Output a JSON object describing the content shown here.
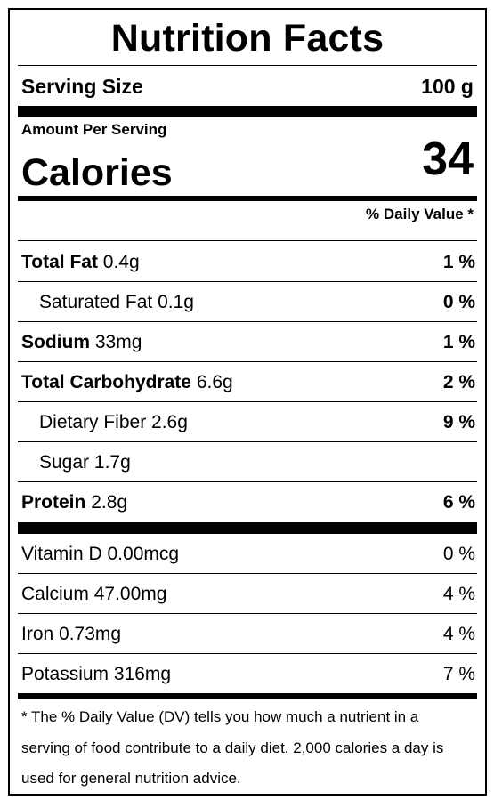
{
  "label": {
    "title": "Nutrition Facts",
    "serving_size_label": "Serving Size",
    "serving_size_value": "100 g",
    "amount_per_serving": "Amount Per Serving",
    "calories_label": "Calories",
    "calories_value": "34",
    "daily_value_header": "% Daily Value *",
    "nutrients": [
      {
        "name": "Total Fat",
        "amount": "0.4g",
        "dv": "1 %"
      },
      {
        "name": "Saturated Fat",
        "amount": "0.1g",
        "dv": "0 %"
      },
      {
        "name": "Sodium",
        "amount": "33mg",
        "dv": "1 %"
      },
      {
        "name": "Total Carbohydrate",
        "amount": "6.6g",
        "dv": "2 %"
      },
      {
        "name": "Dietary Fiber",
        "amount": "2.6g",
        "dv": "9 %"
      },
      {
        "name": "Sugar",
        "amount": "1.7g",
        "dv": ""
      },
      {
        "name": "Protein",
        "amount": "2.8g",
        "dv": "6 %"
      }
    ],
    "vitamins": [
      {
        "name": "Vitamin D",
        "amount": "0.00mcg",
        "dv": "0 %"
      },
      {
        "name": "Calcium",
        "amount": "47.00mg",
        "dv": "4 %"
      },
      {
        "name": "Iron",
        "amount": "0.73mg",
        "dv": "4 %"
      },
      {
        "name": "Potassium",
        "amount": "316mg",
        "dv": "7 %"
      }
    ],
    "footnote": "* The % Daily Value (DV) tells you how much a nutrient in a serving of food contribute to a daily diet. 2,000 calories a day is used for general nutrition advice."
  }
}
